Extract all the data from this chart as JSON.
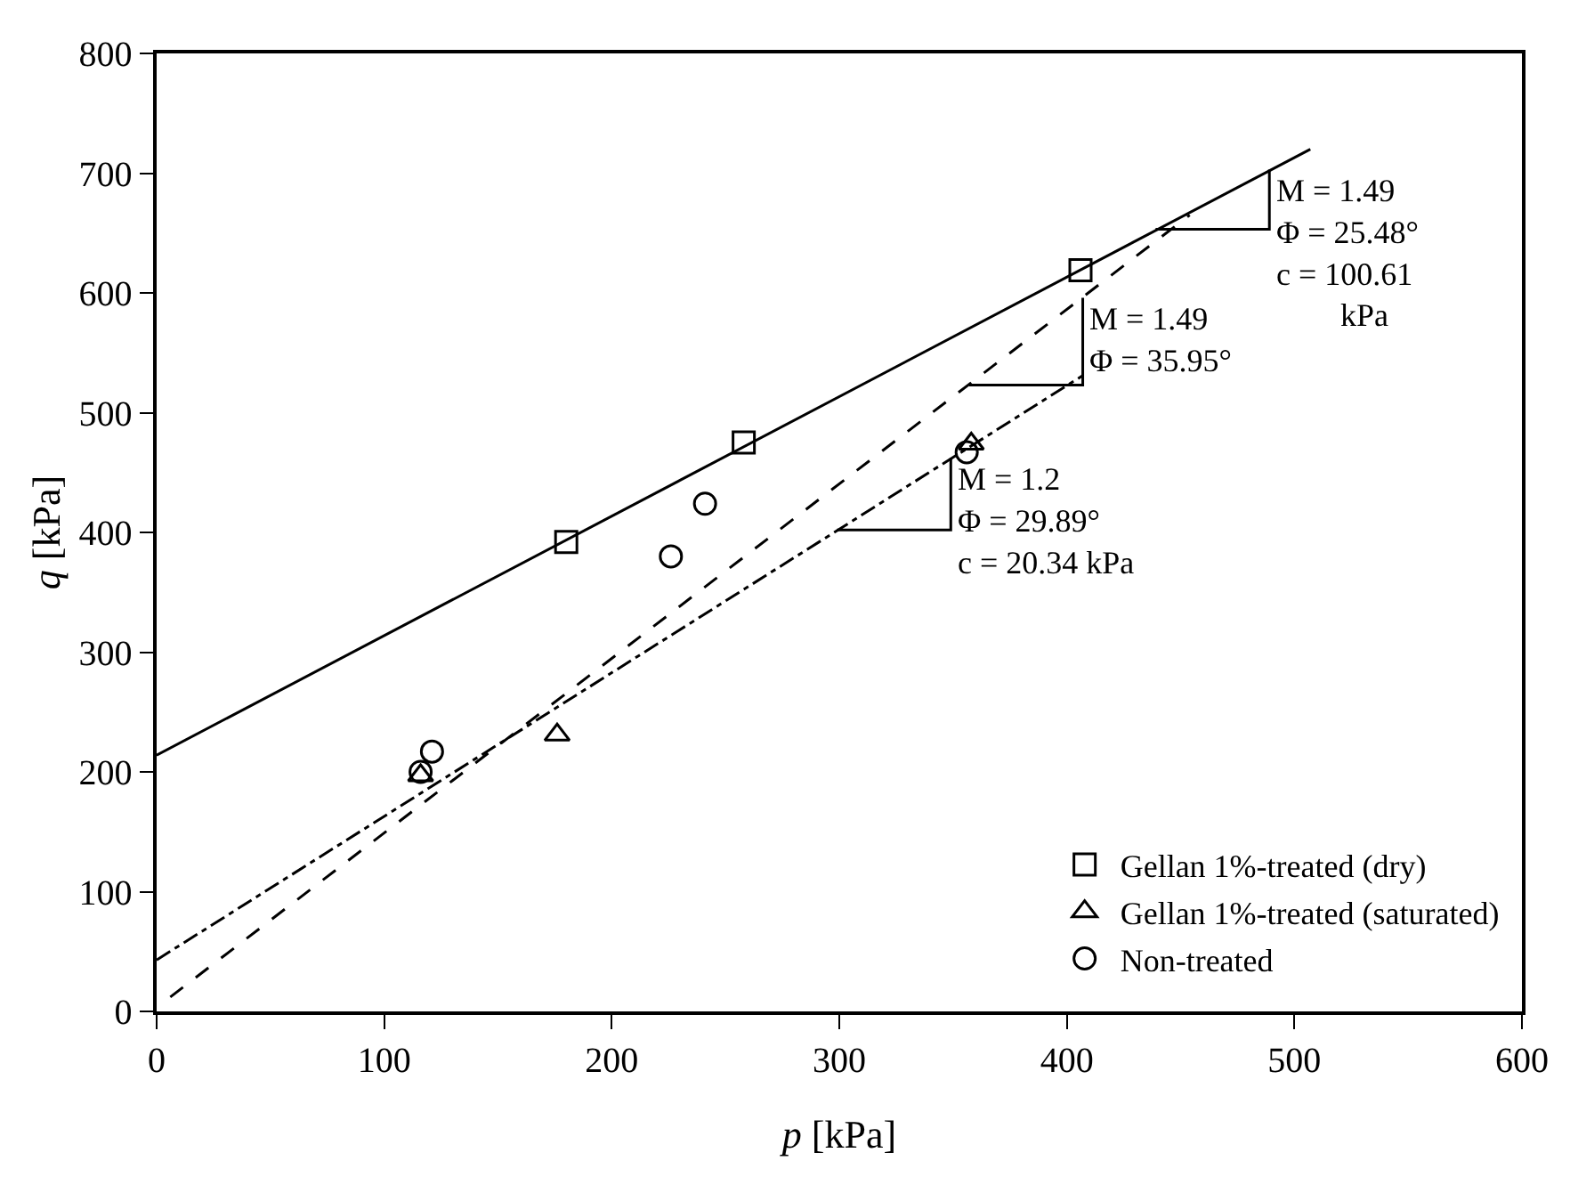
{
  "chart_data": {
    "type": "scatter",
    "xlabel": "p [kPa]",
    "ylabel": "q [kPa]",
    "xlim": [
      0,
      600
    ],
    "xticks": [
      0,
      100,
      200,
      300,
      400,
      500,
      600
    ],
    "ylim": [
      0,
      800
    ],
    "yticks": [
      0,
      100,
      200,
      300,
      400,
      500,
      600,
      700,
      800
    ],
    "grid": false,
    "legend": "bottom right",
    "series": [
      {
        "name": "Gellan 1%-treated (dry)",
        "color": "#000000",
        "marker": "square",
        "x": [
          180,
          258,
          406
        ],
        "values": [
          392,
          475,
          619
        ]
      },
      {
        "name": "Gellan 1%-treated (saturated)",
        "color": "#000000",
        "marker": "triangle",
        "x": [
          116,
          176,
          358
        ],
        "values": [
          197,
          231,
          474
        ]
      },
      {
        "name": "Non-treated",
        "color": "#000000",
        "marker": "circle",
        "x": [
          116,
          121,
          226,
          241,
          356
        ],
        "values": [
          200,
          217,
          380,
          424,
          467
        ]
      },
      {
        "type": "line",
        "color": "#000000",
        "line_style": "solid",
        "x": [
          0,
          507
        ],
        "values": [
          214,
          720
        ]
      },
      {
        "type": "line",
        "color": "#000000",
        "line_style": "dashdot",
        "x": [
          0,
          407
        ],
        "values": [
          43,
          531
        ]
      },
      {
        "type": "line",
        "color": "#000000",
        "line_style": "dashed",
        "x": [
          6,
          454
        ],
        "values": [
          12,
          665
        ]
      }
    ],
    "annotations": [
      {
        "text": "M = 1.49\nΦ = 25.48°\nc = 100.61\n        kPa",
        "x": 489,
        "y": 703
      },
      {
        "text": "M = 1.49\nΦ = 35.95°",
        "x": 407,
        "y": 596
      },
      {
        "text": "M = 1.2\nΦ = 29.89°\nc = 20.34 kPa",
        "x": 349,
        "y": 462
      }
    ]
  }
}
